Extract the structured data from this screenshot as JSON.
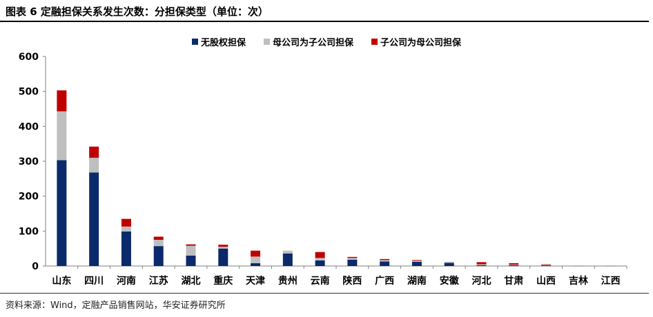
{
  "figure": {
    "title": "图表 6  定融担保关系发生次数：分担保类型（单位：次）",
    "source": "资料来源：Wind，定融产品销售网站，华安证券研究所"
  },
  "chart_data": {
    "type": "bar",
    "stacked": true,
    "categories": [
      "山东",
      "四川",
      "河南",
      "江苏",
      "湖北",
      "重庆",
      "天津",
      "贵州",
      "云南",
      "陕西",
      "广西",
      "湖南",
      "安徽",
      "河北",
      "甘肃",
      "山西",
      "吉林",
      "江西"
    ],
    "series": [
      {
        "name": "无股权担保",
        "color": "#0b2a6b",
        "values": [
          303,
          268,
          99,
          57,
          30,
          50,
          8,
          36,
          16,
          18,
          13,
          12,
          9,
          2,
          2,
          2,
          1,
          1
        ]
      },
      {
        "name": "母公司为子公司担保",
        "color": "#bfbfbf",
        "values": [
          140,
          42,
          14,
          18,
          28,
          5,
          19,
          8,
          7,
          5,
          4,
          3,
          3,
          3,
          2,
          2,
          0.5,
          0.5
        ]
      },
      {
        "name": "子公司为母公司担保",
        "color": "#c00000",
        "values": [
          60,
          32,
          22,
          9,
          4,
          6,
          17,
          0,
          17,
          3,
          3,
          2,
          0,
          6,
          4,
          1,
          0,
          0
        ]
      }
    ],
    "ylim": [
      0,
      600
    ],
    "yticks": [
      0,
      100,
      200,
      300,
      400,
      500,
      600
    ],
    "legend_position": "top-center",
    "grid": false
  }
}
